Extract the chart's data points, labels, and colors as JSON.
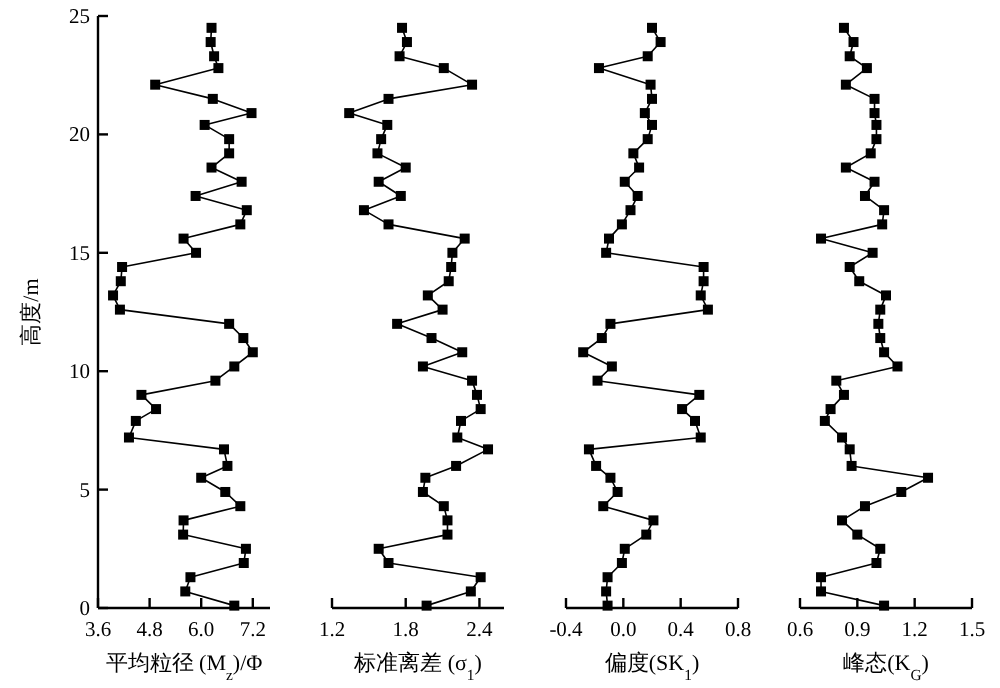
{
  "chart_data": [
    {
      "type": "line",
      "xlabel": "平均粒径 (M$_{z}$)/Φ",
      "ylabel": "高度/m",
      "xlim": [
        3.6,
        7.6
      ],
      "xticks": [
        3.6,
        4.8,
        {
          "value": 6,
          "label": "6.0"
        },
        7.2
      ],
      "ylim": [
        0,
        25
      ],
      "yticks": [
        0,
        5,
        10,
        15,
        20,
        25
      ],
      "marker": "square",
      "line_style": "solid",
      "grid": false,
      "series": [
        {
          "color": "#000000",
          "x": [
            6.24,
            6.22,
            6.3,
            6.4,
            4.93,
            6.27,
            7.17,
            6.08,
            6.65,
            6.65,
            6.24,
            6.94,
            5.87,
            7.06,
            6.91,
            5.59,
            5.88,
            4.16,
            4.13,
            3.95,
            4.11,
            6.65,
            6.98,
            7.2,
            6.77,
            6.33,
            4.61,
            4.95,
            4.48,
            4.32,
            6.53,
            6.61,
            6.0,
            6.56,
            6.91,
            5.59,
            5.58,
            7.04,
            6.99,
            5.75,
            5.63,
            6.77
          ],
          "values": [
            24.5,
            23.9,
            23.3,
            22.8,
            22.1,
            21.5,
            20.9,
            20.4,
            19.8,
            19.2,
            18.6,
            18.0,
            17.4,
            16.8,
            16.2,
            15.6,
            15.0,
            14.4,
            13.8,
            13.2,
            12.6,
            12.0,
            11.4,
            10.8,
            10.2,
            9.6,
            9.0,
            8.4,
            7.9,
            7.2,
            6.7,
            6.0,
            5.5,
            4.9,
            4.3,
            3.7,
            3.1,
            2.5,
            1.9,
            1.3,
            0.7,
            0.1
          ]
        }
      ]
    },
    {
      "type": "line",
      "xlabel": "标准离差 (σ$_{1}$)",
      "xlim": [
        1.2,
        2.6
      ],
      "xticks": [
        1.2,
        1.8,
        2.4
      ],
      "ylim": [
        0,
        25
      ],
      "tick_labels": "x",
      "marker": "square",
      "line_style": "solid",
      "grid": false,
      "series": [
        {
          "color": "#000000",
          "x": [
            1.77,
            1.81,
            1.75,
            2.11,
            2.34,
            1.66,
            1.34,
            1.65,
            1.6,
            1.57,
            1.8,
            1.58,
            1.76,
            1.46,
            1.66,
            2.28,
            2.18,
            2.17,
            2.15,
            1.98,
            2.1,
            1.73,
            2.01,
            2.26,
            1.94,
            2.34,
            2.38,
            2.41,
            2.25,
            2.22,
            2.47,
            2.21,
            1.96,
            1.94,
            2.11,
            2.14,
            2.14,
            1.58,
            1.66,
            2.41,
            2.33,
            1.97
          ],
          "values": [
            24.5,
            23.9,
            23.3,
            22.8,
            22.1,
            21.5,
            20.9,
            20.4,
            19.8,
            19.2,
            18.6,
            18.0,
            17.4,
            16.8,
            16.2,
            15.6,
            15.0,
            14.4,
            13.8,
            13.2,
            12.6,
            12.0,
            11.4,
            10.8,
            10.2,
            9.6,
            9.0,
            8.4,
            7.9,
            7.2,
            6.7,
            6.0,
            5.5,
            4.9,
            4.3,
            3.7,
            3.1,
            2.5,
            1.9,
            1.3,
            0.7,
            0.1
          ]
        }
      ]
    },
    {
      "type": "line",
      "xlabel": "偏度(SK$_{1}$)",
      "xlim": [
        -0.4,
        0.8
      ],
      "xticks": [
        -0.4,
        {
          "value": 0,
          "label": "0.0"
        },
        0.4,
        0.8
      ],
      "ylim": [
        0,
        25
      ],
      "tick_labels": "x",
      "marker": "square",
      "line_style": "solid",
      "grid": false,
      "series": [
        {
          "color": "#000000",
          "x": [
            0.2,
            0.26,
            0.17,
            -0.17,
            0.19,
            0.2,
            0.15,
            0.2,
            0.17,
            0.07,
            0.11,
            0.01,
            0.1,
            0.05,
            -0.01,
            -0.1,
            -0.12,
            0.56,
            0.56,
            0.54,
            0.59,
            -0.09,
            -0.15,
            -0.28,
            -0.08,
            -0.18,
            0.53,
            0.41,
            0.5,
            0.54,
            -0.24,
            -0.19,
            -0.09,
            -0.04,
            -0.14,
            0.21,
            0.16,
            0.01,
            -0.01,
            -0.11,
            -0.12,
            -0.11
          ],
          "values": [
            24.5,
            23.9,
            23.3,
            22.8,
            22.1,
            21.5,
            20.9,
            20.4,
            19.8,
            19.2,
            18.6,
            18.0,
            17.4,
            16.8,
            16.2,
            15.6,
            15.0,
            14.4,
            13.8,
            13.2,
            12.6,
            12.0,
            11.4,
            10.8,
            10.2,
            9.6,
            9.0,
            8.4,
            7.9,
            7.2,
            6.7,
            6.0,
            5.5,
            4.9,
            4.3,
            3.7,
            3.1,
            2.5,
            1.9,
            1.3,
            0.7,
            0.1
          ]
        }
      ]
    },
    {
      "type": "line",
      "xlabel": "峰态(K$_{G}$)",
      "xlim": [
        0.6,
        1.5
      ],
      "xticks": [
        0.6,
        0.9,
        1.2,
        1.5
      ],
      "ylim": [
        0,
        25
      ],
      "tick_labels": "x",
      "marker": "square",
      "line_style": "solid",
      "grid": false,
      "series": [
        {
          "color": "#000000",
          "x": [
            0.83,
            0.88,
            0.86,
            0.95,
            0.84,
            0.99,
            0.99,
            1.0,
            1.0,
            0.97,
            0.84,
            0.99,
            0.94,
            1.04,
            1.03,
            0.71,
            0.98,
            0.86,
            0.91,
            1.05,
            1.02,
            1.01,
            1.02,
            1.04,
            1.11,
            0.79,
            0.83,
            0.76,
            0.73,
            0.82,
            0.86,
            0.87,
            1.27,
            1.13,
            0.94,
            0.82,
            0.9,
            1.02,
            1.0,
            0.71,
            0.71,
            1.04
          ],
          "values": [
            24.5,
            23.9,
            23.3,
            22.8,
            22.1,
            21.5,
            20.9,
            20.4,
            19.8,
            19.2,
            18.6,
            18.0,
            17.4,
            16.8,
            16.2,
            15.6,
            15.0,
            14.4,
            13.8,
            13.2,
            12.6,
            12.0,
            11.4,
            10.8,
            10.2,
            9.6,
            9.0,
            8.4,
            7.9,
            7.2,
            6.7,
            6.0,
            5.5,
            4.9,
            4.3,
            3.7,
            3.1,
            2.5,
            1.9,
            1.3,
            0.7,
            0.1
          ]
        }
      ]
    }
  ]
}
